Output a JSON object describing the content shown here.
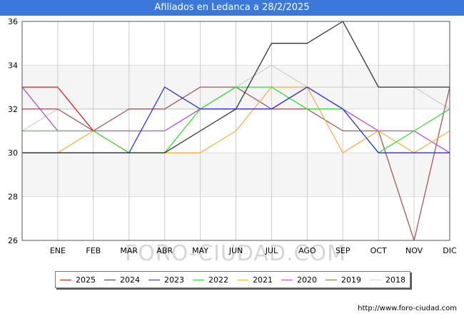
{
  "header": {
    "title": "Afiliados en Ledanca a 28/2/2025"
  },
  "source": "http://www.foro-ciudad.com",
  "watermark": "FORO-CIUDAD.COM",
  "chart_data": {
    "type": "line",
    "title": "Afiliados en Ledanca a 28/2/2025",
    "categories": [
      "",
      "ENE",
      "FEB",
      "MAR",
      "ABR",
      "MAY",
      "JUN",
      "JUL",
      "AGO",
      "SEP",
      "OCT",
      "NOV",
      "DIC"
    ],
    "ylim": [
      26,
      36
    ],
    "yticks": [
      26,
      28,
      30,
      32,
      34,
      36
    ],
    "legend_position": "bottom",
    "series": [
      {
        "name": "2018",
        "color": "#d0d0d0",
        "values": [
          31,
          32,
          32,
          32,
          32,
          32,
          33,
          34,
          33,
          33,
          33,
          33,
          32
        ]
      },
      {
        "name": "2019",
        "color": "#a05a5a",
        "values": [
          32,
          32,
          31,
          32,
          32,
          33,
          33,
          32,
          32,
          31,
          31,
          26,
          33
        ]
      },
      {
        "name": "2020",
        "color": "#b04ad8",
        "values": [
          33,
          31,
          31,
          31,
          31,
          32,
          32,
          32,
          33,
          32,
          31,
          31,
          30
        ]
      },
      {
        "name": "2021",
        "color": "#f5b041",
        "values": [
          30,
          30,
          31,
          30,
          30,
          30,
          31,
          33,
          33,
          30,
          31,
          30,
          31
        ]
      },
      {
        "name": "2022",
        "color": "#33dd33",
        "values": [
          31,
          31,
          31,
          30,
          30,
          32,
          33,
          33,
          32,
          32,
          30,
          31,
          32
        ]
      },
      {
        "name": "2023",
        "color": "#3333dd",
        "values": [
          30,
          30,
          30,
          30,
          33,
          32,
          32,
          32,
          33,
          32,
          30,
          30,
          30
        ]
      },
      {
        "name": "2024",
        "color": "#333333",
        "values": [
          30,
          30,
          30,
          30,
          30,
          31,
          32,
          35,
          35,
          36,
          33,
          33,
          33
        ]
      },
      {
        "name": "2025",
        "color": "#e02020",
        "values": [
          33,
          33,
          31,
          null,
          null,
          null,
          null,
          null,
          null,
          null,
          null,
          null,
          null
        ]
      }
    ]
  }
}
